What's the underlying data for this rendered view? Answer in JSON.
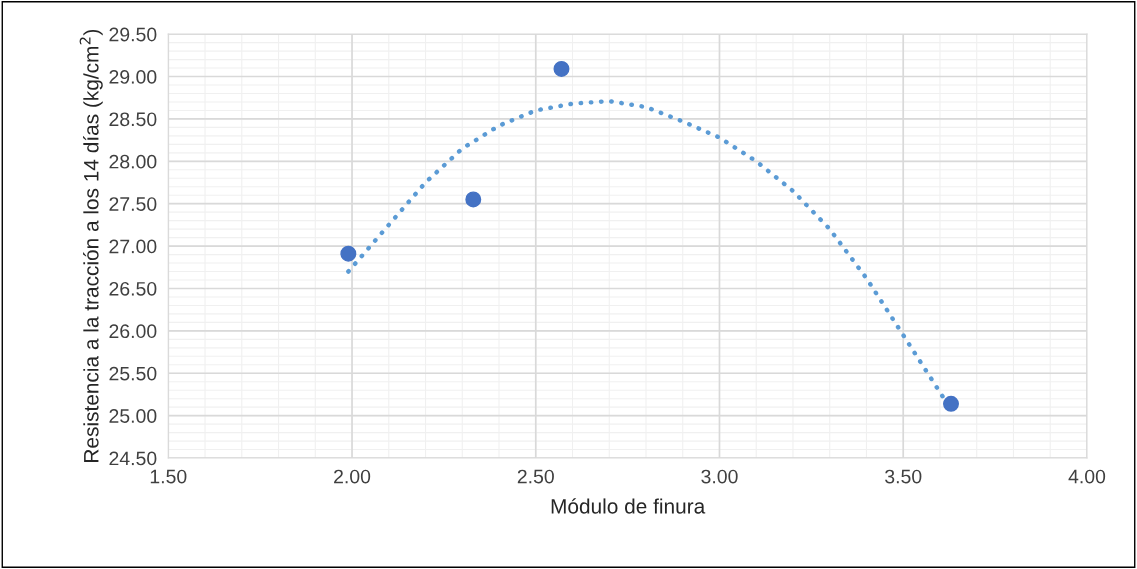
{
  "chart_data": {
    "type": "scatter",
    "xlabel": "Módulo de finura",
    "ylabel": "Resistencia a la tracción a los 14 días (kg/cm$^{2}$)",
    "series": [
      {
        "color": "#4472c4",
        "marker": "circle",
        "x": [
          1.99,
          2.33,
          2.57,
          3.63
        ],
        "values": [
          26.91,
          27.55,
          29.09,
          25.14
        ]
      },
      {
        "type": "line",
        "color": "#5b9bd5",
        "line_style": "dotted",
        "marker": "none",
        "x": [
          1.99,
          2.1,
          2.2,
          2.3,
          2.4,
          2.5,
          2.6,
          2.7,
          2.8,
          2.9,
          3.0,
          3.1,
          3.2,
          3.3,
          3.4,
          3.5,
          3.62
        ],
        "values": [
          26.7,
          27.25,
          27.75,
          28.15,
          28.42,
          28.6,
          28.68,
          28.71,
          28.64,
          28.47,
          28.28,
          28.0,
          27.65,
          27.2,
          26.62,
          25.95,
          25.14
        ]
      }
    ],
    "xlim": [
      1.5,
      4.0
    ],
    "xticks": [
      {
        "value": 1.5,
        "label": "1.50"
      },
      {
        "value": 2.0,
        "label": "2.00"
      },
      {
        "value": 2.5,
        "label": "2.50"
      },
      {
        "value": 3.0,
        "label": "3.00"
      },
      {
        "value": 3.5,
        "label": "3.50"
      },
      {
        "value": 4.0,
        "label": "4.00"
      }
    ],
    "ylim": [
      24.5,
      29.5
    ],
    "yticks": [
      {
        "value": 24.5,
        "label": "24.50"
      },
      {
        "value": 25.0,
        "label": "25.00"
      },
      {
        "value": 25.5,
        "label": "25.50"
      },
      {
        "value": 26.0,
        "label": "26.00"
      },
      {
        "value": 26.5,
        "label": "26.50"
      },
      {
        "value": 27.0,
        "label": "27.00"
      },
      {
        "value": 27.5,
        "label": "27.50"
      },
      {
        "value": 28.0,
        "label": "28.00"
      },
      {
        "value": 28.5,
        "label": "28.50"
      },
      {
        "value": 29.0,
        "label": "29.00"
      },
      {
        "value": 29.5,
        "label": "29.50"
      }
    ],
    "grid": true
  }
}
